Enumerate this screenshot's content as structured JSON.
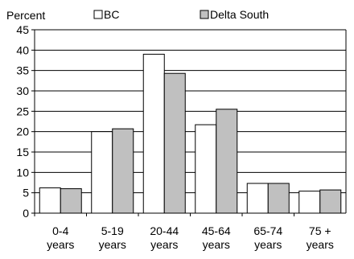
{
  "chart_data": {
    "type": "bar",
    "ylabel": "Percent",
    "ylim": [
      0,
      45
    ],
    "yticks": [
      0,
      5,
      10,
      15,
      20,
      25,
      30,
      35,
      40,
      45
    ],
    "grid": true,
    "legend_position": "top",
    "categories": [
      [
        "0-4",
        "years"
      ],
      [
        "5-19",
        "years"
      ],
      [
        "20-44",
        "years"
      ],
      [
        "45-64",
        "years"
      ],
      [
        "65-74",
        "years"
      ],
      [
        "75 +",
        "years"
      ]
    ],
    "series": [
      {
        "name": "BC",
        "color": "#ffffff",
        "values": [
          6.2,
          20.0,
          39.0,
          21.7,
          7.3,
          5.4
        ]
      },
      {
        "name": "Delta South",
        "color": "#c0c0c0",
        "values": [
          6.0,
          20.7,
          34.3,
          25.5,
          7.3,
          5.7
        ]
      }
    ]
  }
}
